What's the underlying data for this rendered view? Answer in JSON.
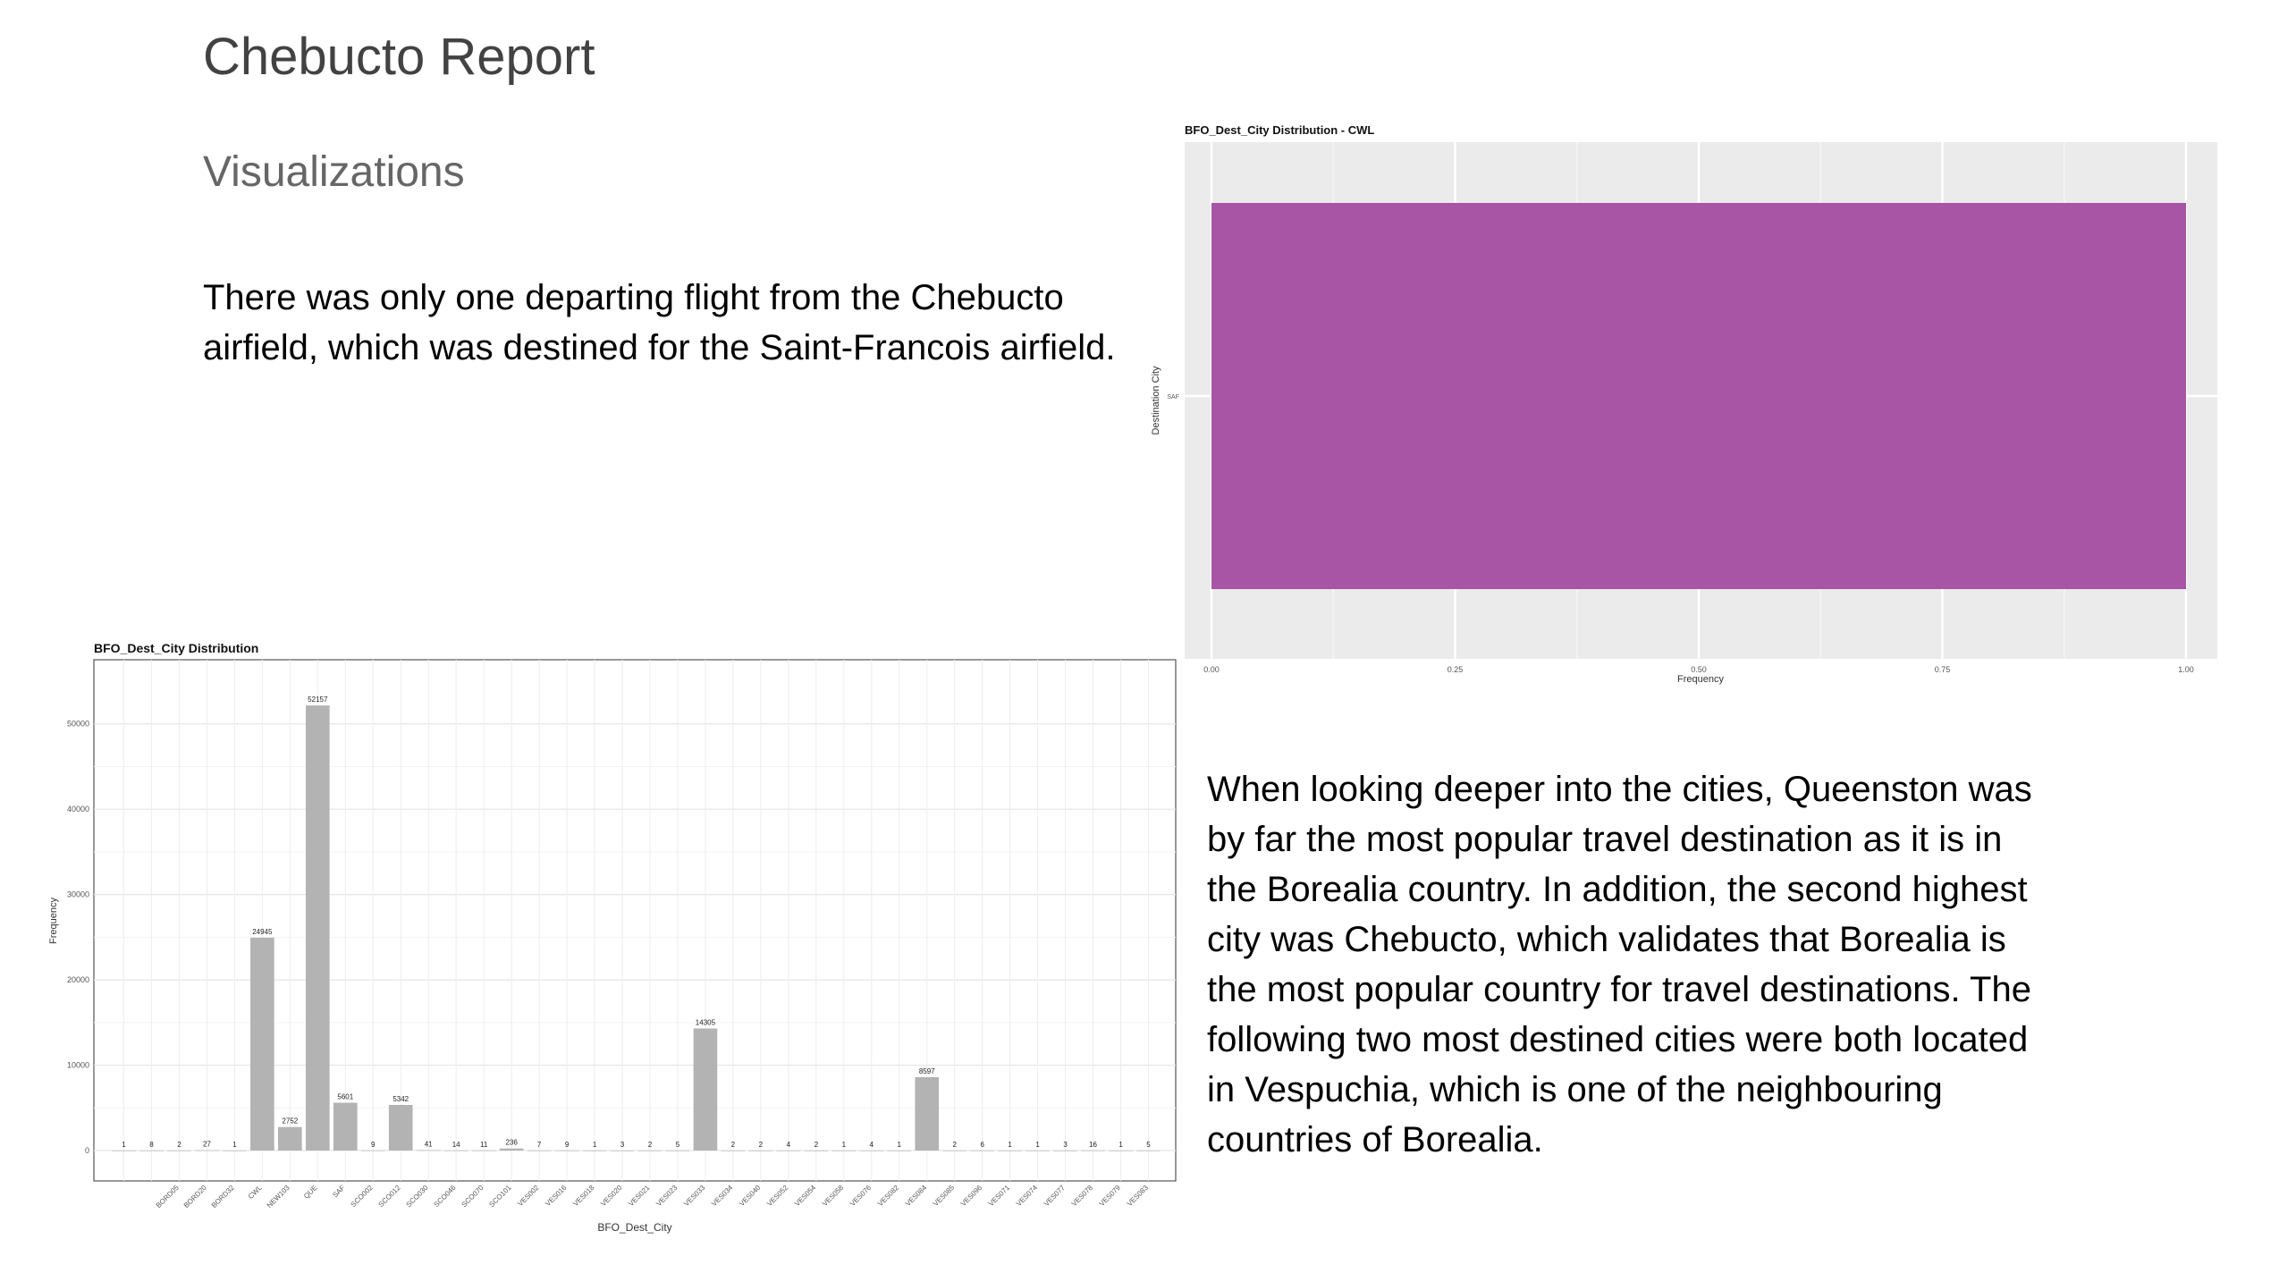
{
  "slide": {
    "title": "Chebucto Report",
    "subtitle": "Visualizations",
    "paragraph1": "There was only one departing flight from the Chebucto airfield, which was destined for the Saint-Francois airfield.",
    "paragraph2": "When looking deeper into the cities, Queenston was by far the most popular travel destination as it is in the Borealia country. In addition, the second highest city was Chebucto, which validates that Borealia is the most popular country for travel destinations. The following two most destined cities were both located in Vespuchia, which is one of the neighbouring countries of Borealia."
  },
  "chart_data": [
    {
      "type": "bar",
      "orientation": "horizontal",
      "title": "BFO_Dest_City Distribution - CWL",
      "xlabel": "Frequency",
      "ylabel": "Destination City",
      "categories": [
        "SAF"
      ],
      "values": [
        1
      ],
      "xlim": [
        0,
        1
      ],
      "xticks": [
        0,
        0.25,
        0.5,
        0.75,
        1
      ],
      "xtick_labels": [
        "0.00",
        "0.25",
        "0.50",
        "0.75",
        "1.00"
      ],
      "bar_color": "#a855a6",
      "panel_color": "#ebebeb",
      "grid": true
    },
    {
      "type": "bar",
      "title": "BFO_Dest_City Distribution",
      "xlabel": "BFO_Dest_City",
      "ylabel": "Frequency",
      "ylim": [
        0,
        55000
      ],
      "yticks": [
        0,
        10000,
        20000,
        30000,
        40000,
        50000
      ],
      "bar_color": "#b3b3b3",
      "grid": true,
      "categories": [
        "",
        "",
        "BORD05",
        "BORD20",
        "BORD32",
        "CWL",
        "NEW103",
        "QUE",
        "SAF",
        "SCO002",
        "SCO012",
        "SCO030",
        "SCO046",
        "SCO070",
        "SCO101",
        "VES002",
        "VES016",
        "VES018",
        "VES020",
        "VES021",
        "VES023",
        "VES033",
        "VES034",
        "VES040",
        "VES052",
        "VES054",
        "VES058",
        "VES076",
        "VES082",
        "VES084",
        "VES085",
        "VES096",
        "VES071",
        "VES074",
        "VES077",
        "VES078",
        "VES079",
        "VES083"
      ],
      "values": [
        1,
        8,
        2,
        27,
        1,
        24945,
        2752,
        52157,
        5601,
        9,
        5342,
        41,
        14,
        11,
        236,
        7,
        9,
        1,
        3,
        2,
        5,
        14305,
        2,
        2,
        4,
        2,
        1,
        4,
        1,
        8597,
        2,
        6,
        1,
        1,
        3,
        16,
        1,
        5
      ],
      "value_labels": [
        "1",
        "8",
        "2",
        "27",
        "1",
        "24945",
        "2752",
        "52157",
        "5601",
        "9",
        "5342",
        "41",
        "14",
        "11",
        "236",
        "7",
        "9",
        "1",
        "3",
        "2",
        "5",
        "14305",
        "2",
        "2",
        "4",
        "2",
        "1",
        "4",
        "1",
        "8597",
        "2",
        "6",
        "1",
        "1",
        "3",
        "16",
        "1",
        "5"
      ]
    }
  ]
}
